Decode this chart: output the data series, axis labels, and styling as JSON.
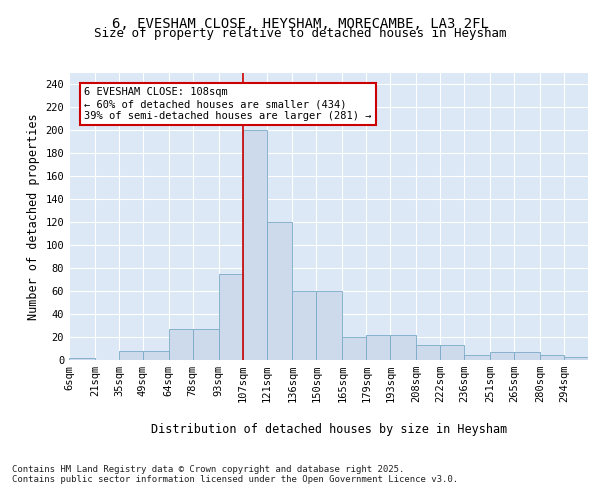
{
  "title": "6, EVESHAM CLOSE, HEYSHAM, MORECAMBE, LA3 2FL",
  "subtitle": "Size of property relative to detached houses in Heysham",
  "xlabel": "Distribution of detached houses by size in Heysham",
  "ylabel": "Number of detached properties",
  "bar_labels": [
    "6sqm",
    "21sqm",
    "35sqm",
    "49sqm",
    "64sqm",
    "78sqm",
    "93sqm",
    "107sqm",
    "121sqm",
    "136sqm",
    "150sqm",
    "165sqm",
    "179sqm",
    "193sqm",
    "208sqm",
    "222sqm",
    "236sqm",
    "251sqm",
    "265sqm",
    "280sqm",
    "294sqm"
  ],
  "bins": [
    6,
    21,
    35,
    49,
    64,
    78,
    93,
    107,
    121,
    136,
    150,
    165,
    179,
    193,
    208,
    222,
    236,
    251,
    265,
    280,
    294,
    308
  ],
  "counts": [
    2,
    0,
    8,
    8,
    27,
    27,
    75,
    200,
    120,
    60,
    60,
    20,
    22,
    22,
    13,
    13,
    4,
    7,
    7,
    4,
    3
  ],
  "bar_color": "#ccdaeb",
  "bar_edge_color": "#7aaac8",
  "background_color": "#dce8f5",
  "vline_x": 107,
  "vline_color": "#cc0000",
  "annotation_title": "6 EVESHAM CLOSE: 108sqm",
  "annotation_line1": "← 60% of detached houses are smaller (434)",
  "annotation_line2": "39% of semi-detached houses are larger (281) →",
  "annotation_box_facecolor": "#ffffff",
  "annotation_box_edgecolor": "#cc0000",
  "footer": "Contains HM Land Registry data © Crown copyright and database right 2025.\nContains public sector information licensed under the Open Government Licence v3.0.",
  "ylim": [
    0,
    250
  ],
  "yticks": [
    0,
    20,
    40,
    60,
    80,
    100,
    120,
    140,
    160,
    180,
    200,
    220,
    240
  ],
  "title_fontsize": 10,
  "subtitle_fontsize": 9,
  "axis_label_fontsize": 8.5,
  "tick_fontsize": 7.5,
  "annotation_fontsize": 7.5,
  "footer_fontsize": 6.5
}
